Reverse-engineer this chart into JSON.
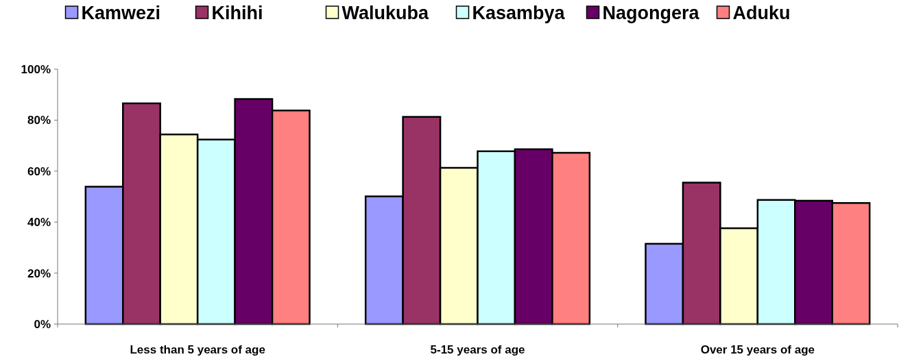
{
  "chart_data": {
    "type": "bar",
    "categories": [
      "Less than 5 years of age",
      "5-15 years of age",
      "Over 15 years of age"
    ],
    "series": [
      {
        "name": "Kamwezi",
        "color": "#9999ff",
        "values": [
          53.9,
          50.1,
          31.5
        ]
      },
      {
        "name": "Kihihi",
        "color": "#993366",
        "values": [
          86.6,
          81.3,
          55.5
        ]
      },
      {
        "name": "Walukuba",
        "color": "#ffffcc",
        "values": [
          74.4,
          61.3,
          37.6
        ]
      },
      {
        "name": "Kasambya",
        "color": "#ccffff",
        "values": [
          72.4,
          67.8,
          48.7
        ]
      },
      {
        "name": "Nagongera",
        "color": "#660066",
        "values": [
          88.3,
          68.6,
          48.4
        ]
      },
      {
        "name": "Aduku",
        "color": "#ff8080",
        "values": [
          83.8,
          67.2,
          47.5
        ]
      }
    ],
    "ylim": [
      0,
      100
    ],
    "yticks": [
      {
        "value": 0,
        "label": "0%"
      },
      {
        "value": 20,
        "label": "20%"
      },
      {
        "value": 40,
        "label": "40%"
      },
      {
        "value": 60,
        "label": "60%"
      },
      {
        "value": 80,
        "label": "80%"
      },
      {
        "value": 100,
        "label": "100%"
      }
    ],
    "grid": false,
    "legend": "top"
  }
}
